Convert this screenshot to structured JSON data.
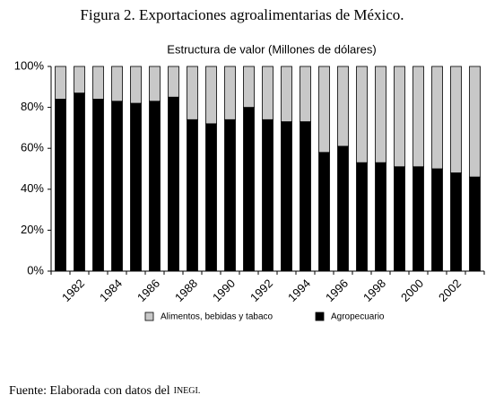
{
  "figure_title": "Figura 2. Exportaciones agroalimentarias de México.",
  "source": {
    "text": "Fuente: Elaborada con datos del",
    "org": "INEGI."
  },
  "chart_data": {
    "type": "stacked_bar",
    "title": "Estructura de valor (Millones de dólares)",
    "categories": [
      null,
      "1982",
      null,
      "1984",
      null,
      "1986",
      null,
      "1988",
      null,
      "1990",
      null,
      "1992",
      null,
      "1994",
      null,
      "1996",
      null,
      "1998",
      null,
      "2000",
      null,
      "2002",
      null
    ],
    "series": [
      {
        "name": "Agropecuario",
        "color": "#000000",
        "values": [
          84,
          87,
          84,
          83,
          82,
          83,
          85,
          74,
          72,
          74,
          80,
          74,
          73,
          73,
          58,
          61,
          53,
          53,
          51,
          51,
          50,
          48,
          46
        ]
      },
      {
        "name": "Alimentos, bebidas y tabaco",
        "color": "#c8c8c8",
        "values": [
          16,
          13,
          16,
          17,
          18,
          17,
          15,
          26,
          28,
          26,
          20,
          26,
          27,
          27,
          42,
          39,
          47,
          47,
          49,
          49,
          50,
          52,
          54
        ]
      }
    ],
    "ylim": [
      0,
      100
    ],
    "yticks": [
      {
        "value": 0,
        "label": "0%"
      },
      {
        "value": 20,
        "label": "20%"
      },
      {
        "value": 40,
        "label": "40%"
      },
      {
        "value": 60,
        "label": "60%"
      },
      {
        "value": 80,
        "label": "80%"
      },
      {
        "value": 100,
        "label": "100%"
      }
    ]
  }
}
